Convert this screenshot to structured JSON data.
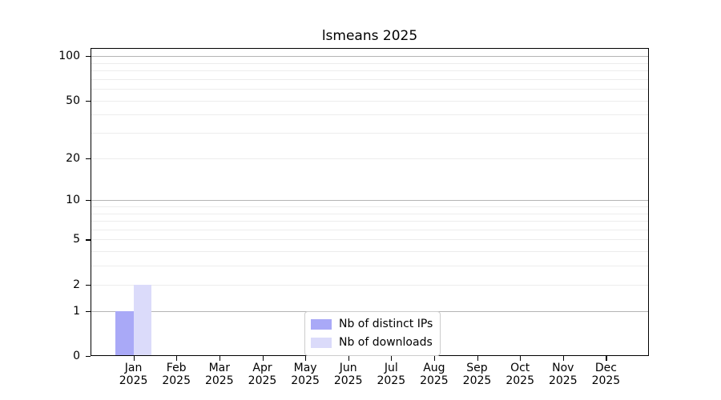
{
  "figure": {
    "title": "lsmeans 2025"
  },
  "chart_data": {
    "type": "bar",
    "title": "lsmeans 2025",
    "categories": [
      "Jan",
      "Feb",
      "Mar",
      "Apr",
      "May",
      "Jun",
      "Jul",
      "Aug",
      "Sep",
      "Oct",
      "Nov",
      "Dec"
    ],
    "x_year_label": "2025",
    "series": [
      {
        "name": "Nb of distinct IPs",
        "color": "#a9a9f7",
        "values": [
          1,
          0,
          0,
          0,
          0,
          0,
          0,
          0,
          0,
          0,
          0,
          0
        ]
      },
      {
        "name": "Nb of downloads",
        "color": "#dbdbfa",
        "values": [
          2,
          0,
          0,
          0,
          0,
          0,
          0,
          0,
          0,
          0,
          0,
          0
        ]
      }
    ],
    "yscale": "log1p",
    "ylim": [
      0,
      113
    ],
    "y_tick_values": [
      0,
      1,
      2,
      5,
      10,
      20,
      50,
      100
    ],
    "y_major_grid": [
      1,
      10,
      100
    ],
    "y_minor_grid": [
      2,
      3,
      4,
      5,
      6,
      7,
      8,
      9,
      20,
      30,
      40,
      50,
      60,
      70,
      80,
      90
    ],
    "grid": true,
    "legend_position": "lower center"
  },
  "colors": {
    "background": "#ffffff",
    "spine": "#000000",
    "major_grid": "#b4b4b4",
    "minor_grid": "#ececec",
    "legend_border": "#cccccc",
    "text": "#000000"
  }
}
